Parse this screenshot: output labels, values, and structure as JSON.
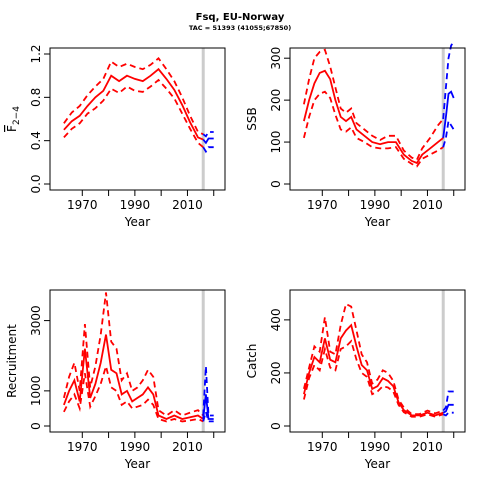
{
  "figure": {
    "title": "Fsq, EU-Norway",
    "subtitle": "TAC = 51393 (41055;67850)"
  },
  "colors": {
    "historic": "#ff0000",
    "forecast": "#0000ff",
    "tac_year_line": "#cccccc",
    "axis": "#000000"
  },
  "chart_data": [
    {
      "type": "line",
      "xlabel": "Year",
      "ylabel": "F2-4 (mean)",
      "ylabel_parts": {
        "main": "F",
        "sub": "2−4"
      },
      "xlim": [
        1960,
        2022
      ],
      "ylim": [
        0,
        1.2
      ],
      "xticks": [
        "1970",
        "1990",
        "2010"
      ],
      "yticks": [
        "0.0",
        "0.4",
        "0.8",
        "1.2"
      ],
      "vline_x": 2016,
      "series": [
        {
          "role": "historic-median",
          "style": "solid",
          "x": [
            1963,
            1966,
            1969,
            1972,
            1975,
            1978,
            1981,
            1984,
            1987,
            1990,
            1993,
            1996,
            1999,
            2002,
            2005,
            2008,
            2011,
            2014,
            2016
          ],
          "y": [
            0.5,
            0.58,
            0.63,
            0.72,
            0.8,
            0.86,
            1.0,
            0.95,
            1.0,
            0.97,
            0.95,
            1.0,
            1.06,
            0.97,
            0.87,
            0.73,
            0.57,
            0.43,
            0.41
          ]
        },
        {
          "role": "historic-upper",
          "style": "dashed",
          "x": [
            1963,
            1966,
            1969,
            1972,
            1975,
            1978,
            1981,
            1984,
            1987,
            1990,
            1993,
            1996,
            1999,
            2002,
            2005,
            2008,
            2011,
            2014,
            2016
          ],
          "y": [
            0.56,
            0.66,
            0.72,
            0.82,
            0.9,
            0.97,
            1.13,
            1.08,
            1.11,
            1.08,
            1.06,
            1.1,
            1.16,
            1.06,
            0.95,
            0.8,
            0.63,
            0.48,
            0.46
          ]
        },
        {
          "role": "historic-lower",
          "style": "dashed",
          "x": [
            1963,
            1966,
            1969,
            1972,
            1975,
            1978,
            1981,
            1984,
            1987,
            1990,
            1993,
            1996,
            1999,
            2002,
            2005,
            2008,
            2011,
            2014,
            2016
          ],
          "y": [
            0.43,
            0.51,
            0.56,
            0.65,
            0.7,
            0.77,
            0.88,
            0.84,
            0.9,
            0.86,
            0.85,
            0.9,
            0.96,
            0.88,
            0.79,
            0.65,
            0.51,
            0.38,
            0.34
          ]
        },
        {
          "role": "forecast-median",
          "style": "solid",
          "x": [
            2016,
            2017,
            2018,
            2019,
            2020
          ],
          "y": [
            0.41,
            0.38,
            0.42,
            0.42,
            0.42
          ]
        },
        {
          "role": "forecast-upper",
          "style": "dashed",
          "x": [
            2016,
            2017,
            2018,
            2019,
            2020
          ],
          "y": [
            0.46,
            0.44,
            0.48,
            0.48,
            0.48
          ]
        },
        {
          "role": "forecast-lower",
          "style": "dashed",
          "x": [
            2016,
            2017,
            2018,
            2019,
            2020
          ],
          "y": [
            0.34,
            0.3,
            0.34,
            0.34,
            0.34
          ]
        }
      ]
    },
    {
      "type": "line",
      "xlabel": "Year",
      "ylabel": "SSB",
      "xlim": [
        1960,
        2022
      ],
      "ylim": [
        0,
        310
      ],
      "xticks": [
        "1970",
        "1990",
        "2010"
      ],
      "yticks": [
        "0",
        "100",
        "200",
        "300"
      ],
      "vline_x": 2016,
      "series": [
        {
          "role": "historic-median",
          "style": "solid",
          "x": [
            1963,
            1965,
            1967,
            1969,
            1971,
            1973,
            1975,
            1977,
            1979,
            1981,
            1983,
            1986,
            1989,
            1992,
            1995,
            1998,
            2001,
            2004,
            2006,
            2008,
            2011,
            2014,
            2016
          ],
          "y": [
            150,
            200,
            240,
            265,
            270,
            250,
            200,
            160,
            150,
            160,
            130,
            115,
            100,
            95,
            100,
            100,
            70,
            55,
            50,
            70,
            85,
            100,
            110
          ]
        },
        {
          "role": "historic-upper",
          "style": "dashed",
          "x": [
            1963,
            1965,
            1967,
            1969,
            1971,
            1973,
            1975,
            1977,
            1979,
            1981,
            1983,
            1986,
            1989,
            1992,
            1995,
            1998,
            2001,
            2004,
            2006,
            2008,
            2011,
            2014,
            2016
          ],
          "y": [
            190,
            250,
            300,
            315,
            320,
            280,
            230,
            180,
            170,
            180,
            145,
            130,
            115,
            105,
            115,
            115,
            80,
            63,
            58,
            85,
            110,
            140,
            155
          ]
        },
        {
          "role": "historic-lower",
          "style": "dashed",
          "x": [
            1963,
            1965,
            1967,
            1969,
            1971,
            1973,
            1975,
            1977,
            1979,
            1981,
            1983,
            1986,
            1989,
            1992,
            1995,
            1998,
            2001,
            2004,
            2006,
            2008,
            2011,
            2014,
            2016
          ],
          "y": [
            110,
            160,
            200,
            215,
            220,
            205,
            165,
            130,
            125,
            135,
            110,
            100,
            88,
            85,
            85,
            88,
            60,
            48,
            42,
            60,
            70,
            80,
            88
          ]
        },
        {
          "role": "forecast-median",
          "style": "solid",
          "x": [
            2016,
            2017,
            2018,
            2019,
            2020
          ],
          "y": [
            110,
            160,
            215,
            220,
            205
          ]
        },
        {
          "role": "forecast-upper",
          "style": "dashed",
          "x": [
            2016,
            2017,
            2018,
            2019,
            2020
          ],
          "y": [
            155,
            230,
            300,
            330,
            340
          ]
        },
        {
          "role": "forecast-lower",
          "style": "dashed",
          "x": [
            2016,
            2017,
            2018,
            2019,
            2020
          ],
          "y": [
            88,
            110,
            150,
            140,
            130
          ]
        }
      ]
    },
    {
      "type": "line",
      "xlabel": "Year",
      "ylabel": "Recruitment",
      "xlim": [
        1960,
        2022
      ],
      "ylim": [
        0,
        3700
      ],
      "xticks": [
        "1970",
        "1990",
        "2010"
      ],
      "yticks": [
        "0",
        "1000",
        "3000"
      ],
      "vline_x": 2016,
      "series": [
        {
          "role": "historic-median",
          "style": "solid",
          "x": [
            1963,
            1965,
            1967,
            1969,
            1971,
            1973,
            1975,
            1977,
            1979,
            1981,
            1983,
            1985,
            1987,
            1989,
            1991,
            1993,
            1995,
            1997,
            1999,
            2002,
            2005,
            2008,
            2011,
            2014,
            2016
          ],
          "y": [
            600,
            1000,
            1300,
            700,
            2200,
            800,
            1200,
            1800,
            2600,
            1600,
            1500,
            900,
            1000,
            700,
            800,
            900,
            1100,
            900,
            300,
            200,
            300,
            200,
            250,
            300,
            200
          ]
        },
        {
          "role": "historic-upper",
          "style": "dashed",
          "x": [
            1963,
            1965,
            1967,
            1969,
            1971,
            1973,
            1975,
            1977,
            1979,
            1981,
            1983,
            1985,
            1987,
            1989,
            1991,
            1993,
            1995,
            1997,
            1999,
            2002,
            2005,
            2008,
            2011,
            2014,
            2016
          ],
          "y": [
            800,
            1400,
            1800,
            1000,
            2900,
            1100,
            1700,
            2600,
            3800,
            2400,
            2200,
            1300,
            1500,
            1000,
            1100,
            1300,
            1600,
            1400,
            450,
            300,
            450,
            300,
            380,
            450,
            300
          ]
        },
        {
          "role": "historic-lower",
          "style": "dashed",
          "x": [
            1963,
            1965,
            1967,
            1969,
            1971,
            1973,
            1975,
            1977,
            1979,
            1981,
            1983,
            1985,
            1987,
            1989,
            1991,
            1993,
            1995,
            1997,
            1999,
            2002,
            2005,
            2008,
            2011,
            2014,
            2016
          ],
          "y": [
            400,
            700,
            900,
            500,
            1500,
            550,
            850,
            1200,
            1700,
            1100,
            1000,
            600,
            700,
            500,
            550,
            600,
            750,
            600,
            200,
            130,
            200,
            130,
            160,
            200,
            130
          ]
        },
        {
          "role": "forecast-median",
          "style": "solid",
          "x": [
            2016,
            2017,
            2018,
            2019,
            2020
          ],
          "y": [
            200,
            900,
            200,
            200,
            200
          ]
        },
        {
          "role": "forecast-upper",
          "style": "dashed",
          "x": [
            2016,
            2017,
            2018,
            2019,
            2020
          ],
          "y": [
            300,
            1700,
            300,
            300,
            300
          ]
        },
        {
          "role": "forecast-lower",
          "style": "dashed",
          "x": [
            2016,
            2017,
            2018,
            2019,
            2020
          ],
          "y": [
            130,
            400,
            130,
            130,
            130
          ]
        }
      ]
    },
    {
      "type": "line",
      "xlabel": "Year",
      "ylabel": "Catch",
      "xlim": [
        1960,
        2022
      ],
      "ylim": [
        0,
        490
      ],
      "xticks": [
        "1970",
        "1990",
        "2010"
      ],
      "yticks": [
        "0",
        "200",
        "400"
      ],
      "vline_x": 2016,
      "series": [
        {
          "role": "historic-median",
          "style": "solid",
          "x": [
            1963,
            1965,
            1967,
            1969,
            1971,
            1973,
            1975,
            1977,
            1979,
            1981,
            1983,
            1985,
            1987,
            1989,
            1991,
            1993,
            1995,
            1997,
            1999,
            2001,
            2004,
            2007,
            2010,
            2013,
            2016
          ],
          "y": [
            120,
            200,
            260,
            240,
            330,
            250,
            240,
            330,
            360,
            380,
            300,
            230,
            210,
            140,
            150,
            180,
            170,
            150,
            90,
            60,
            40,
            40,
            50,
            40,
            50
          ]
        },
        {
          "role": "historic-upper",
          "style": "dashed",
          "x": [
            1963,
            1965,
            1967,
            1969,
            1971,
            1973,
            1975,
            1977,
            1979,
            1981,
            1983,
            1985,
            1987,
            1989,
            1991,
            1993,
            1995,
            1997,
            1999,
            2001,
            2004,
            2007,
            2010,
            2013,
            2016
          ],
          "y": [
            140,
            220,
            300,
            280,
            410,
            280,
            270,
            380,
            460,
            450,
            360,
            270,
            240,
            160,
            175,
            210,
            200,
            170,
            100,
            70,
            45,
            45,
            58,
            48,
            58
          ]
        },
        {
          "role": "historic-lower",
          "style": "dashed",
          "x": [
            1963,
            1965,
            1967,
            1969,
            1971,
            1973,
            1975,
            1977,
            1979,
            1981,
            1983,
            1985,
            1987,
            1989,
            1991,
            1993,
            1995,
            1997,
            1999,
            2001,
            2004,
            2007,
            2010,
            2013,
            2016
          ],
          "y": [
            100,
            180,
            230,
            210,
            290,
            220,
            210,
            290,
            300,
            320,
            250,
            200,
            185,
            120,
            130,
            150,
            145,
            130,
            80,
            52,
            35,
            35,
            44,
            35,
            44
          ]
        },
        {
          "role": "forecast-median",
          "style": "solid",
          "x": [
            2016,
            2017,
            2018,
            2019,
            2020
          ],
          "y": [
            50,
            55,
            80,
            80,
            80
          ]
        },
        {
          "role": "forecast-upper",
          "style": "dashed",
          "x": [
            2016,
            2017,
            2018,
            2019,
            2020
          ],
          "y": [
            58,
            70,
            130,
            130,
            130
          ]
        },
        {
          "role": "forecast-lower",
          "style": "dashed",
          "x": [
            2016,
            2017,
            2018,
            2019,
            2020
          ],
          "y": [
            44,
            40,
            50,
            50,
            50
          ]
        }
      ]
    }
  ]
}
